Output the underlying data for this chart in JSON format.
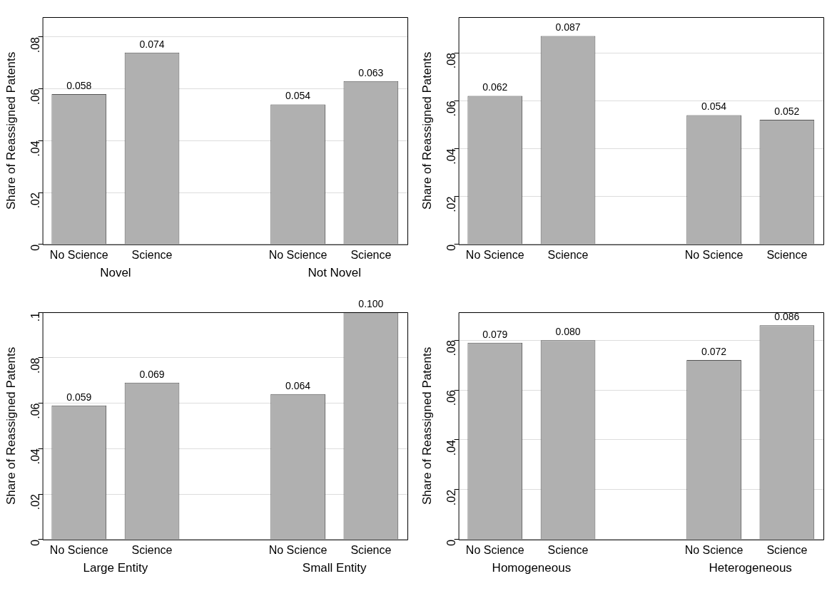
{
  "chart_data": [
    {
      "type": "bar",
      "ylabel": "Share of Reassigned Patents",
      "categories": [
        "No Science",
        "Science",
        null,
        "No Science",
        "Science"
      ],
      "values": [
        0.058,
        0.074,
        null,
        0.054,
        0.063
      ],
      "color": "#b0b0b0",
      "data_labels": true,
      "ylim": [
        0,
        0.0877
      ],
      "yticks": [
        {
          "value": 0,
          "label": "0"
        },
        {
          "value": 0.02,
          "label": ".02"
        },
        {
          "value": 0.04,
          "label": ".04"
        },
        {
          "value": 0.06,
          "label": ".06"
        },
        {
          "value": 0.08,
          "label": ".08"
        }
      ],
      "grid": "y",
      "annotations": [
        "Novel",
        "Not Novel"
      ]
    },
    {
      "type": "bar",
      "ylabel": "Share of Reassigned Patents",
      "categories": [
        "No Science",
        "Science",
        null,
        "No Science",
        "Science"
      ],
      "values": [
        0.062,
        0.087,
        null,
        0.054,
        0.052
      ],
      "color": "#b0b0b0",
      "data_labels": true,
      "ylim": [
        0,
        0.0949
      ],
      "yticks": [
        {
          "value": 0,
          "label": "0"
        },
        {
          "value": 0.02,
          "label": ".02"
        },
        {
          "value": 0.04,
          "label": ".04"
        },
        {
          "value": 0.06,
          "label": ".06"
        },
        {
          "value": 0.08,
          "label": ".08"
        }
      ],
      "grid": "y"
    },
    {
      "type": "bar",
      "ylabel": "Share of Reassigned Patents",
      "categories": [
        "No Science",
        "Science",
        null,
        "No Science",
        "Science"
      ],
      "values": [
        0.059,
        0.069,
        null,
        0.064,
        0.1
      ],
      "value_labels": [
        "0.059",
        "0.069",
        null,
        "0.064",
        "0.100"
      ],
      "color": "#b0b0b0",
      "ylim": [
        0,
        0.1
      ],
      "yticks": [
        {
          "value": 0,
          "label": "0"
        },
        {
          "value": 0.02,
          "label": ".02"
        },
        {
          "value": 0.04,
          "label": ".04"
        },
        {
          "value": 0.06,
          "label": ".06"
        },
        {
          "value": 0.08,
          "label": ".08"
        },
        {
          "value": 0.1,
          "label": ".1"
        }
      ],
      "grid": "y",
      "annotations": [
        "Large Entity",
        "Small Entity"
      ]
    },
    {
      "type": "bar",
      "ylabel": "Share of Reassigned Patents",
      "categories": [
        "No Science",
        "Science",
        null,
        "No Science",
        "Science"
      ],
      "values": [
        0.079,
        0.08,
        null,
        0.072,
        0.086
      ],
      "value_labels": [
        "0.079",
        "0.080",
        null,
        "0.072",
        "0.086"
      ],
      "color": "#b0b0b0",
      "ylim": [
        0,
        0.0912
      ],
      "yticks": [
        {
          "value": 0,
          "label": "0"
        },
        {
          "value": 0.02,
          "label": ".02"
        },
        {
          "value": 0.04,
          "label": ".04"
        },
        {
          "value": 0.06,
          "label": ".06"
        },
        {
          "value": 0.08,
          "label": ".08"
        }
      ],
      "grid": "y",
      "annotations": [
        "Homogeneous",
        "Heterogeneous"
      ]
    }
  ]
}
